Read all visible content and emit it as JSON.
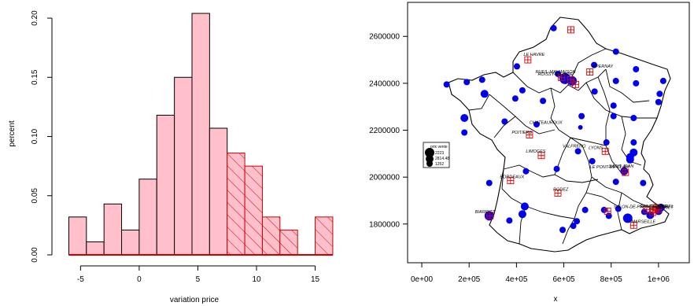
{
  "chart_data": [
    {
      "type": "bar",
      "subtype": "histogram",
      "xlabel": "variation price",
      "ylabel": "percent",
      "xlim": [
        -6.5,
        15.5
      ],
      "ylim": [
        0,
        0.21
      ],
      "xticks": [
        "-5",
        "0",
        "5",
        "10",
        "15"
      ],
      "yticks": [
        "0.00",
        "0.05",
        "0.10",
        "0.15",
        "0.20"
      ],
      "colors": {
        "fill": "#ffc0cb",
        "highlight": "#cc0000",
        "outline": "#000000"
      },
      "bins": [
        {
          "x0": -6,
          "x1": -4.5,
          "value": 0.032,
          "highlight": false
        },
        {
          "x0": -4.5,
          "x1": -3,
          "value": 0.011,
          "highlight": false
        },
        {
          "x0": -3,
          "x1": -1.5,
          "value": 0.043,
          "highlight": false
        },
        {
          "x0": -1.5,
          "x1": 0,
          "value": 0.021,
          "highlight": false
        },
        {
          "x0": 0,
          "x1": 1.5,
          "value": 0.064,
          "highlight": false
        },
        {
          "x0": 1.5,
          "x1": 3,
          "value": 0.118,
          "highlight": false
        },
        {
          "x0": 3,
          "x1": 4.5,
          "value": 0.15,
          "highlight": false
        },
        {
          "x0": 4.5,
          "x1": 6,
          "value": 0.204,
          "highlight": false
        },
        {
          "x0": 6,
          "x1": 7.5,
          "value": 0.107,
          "highlight": false
        },
        {
          "x0": 7.5,
          "x1": 9,
          "value": 0.086,
          "highlight": true
        },
        {
          "x0": 9,
          "x1": 10.5,
          "value": 0.075,
          "highlight": true
        },
        {
          "x0": 10.5,
          "x1": 12,
          "value": 0.032,
          "highlight": true
        },
        {
          "x0": 12,
          "x1": 13.5,
          "value": 0.021,
          "highlight": true
        },
        {
          "x0": 13.5,
          "x1": 15,
          "value": 0.0,
          "highlight": true
        },
        {
          "x0": 15,
          "x1": 16.5,
          "value": 0.032,
          "highlight": true
        }
      ]
    },
    {
      "type": "scatter",
      "subtype": "map",
      "xlabel": "x",
      "ylabel": "",
      "xlim": [
        -60000,
        1130000
      ],
      "ylim": [
        1635000,
        2745000
      ],
      "xticks": [
        "0e+00",
        "2e+05",
        "4e+05",
        "6e+05",
        "8e+05",
        "1e+06"
      ],
      "yticks": [
        "1800000",
        "2000000",
        "2200000",
        "2400000",
        "2600000"
      ],
      "colors": {
        "points": "#0000ee",
        "highlight": "#dd0000",
        "legend_symbol": "#000000"
      },
      "legend": {
        "title": "prix vente",
        "entries": [
          "2223",
          "2814.48",
          "1252"
        ]
      },
      "points": [
        {
          "x": 557000,
          "y": 2635000,
          "r": 4
        },
        {
          "x": 820000,
          "y": 2535000,
          "r": 4
        },
        {
          "x": 402000,
          "y": 2472000,
          "r": 4
        },
        {
          "x": 728000,
          "y": 2478000,
          "r": 4
        },
        {
          "x": 905000,
          "y": 2460000,
          "r": 4
        },
        {
          "x": 575000,
          "y": 2440000,
          "r": 4
        },
        {
          "x": 605000,
          "y": 2420000,
          "r": 7
        },
        {
          "x": 635000,
          "y": 2410000,
          "r": 6
        },
        {
          "x": 105000,
          "y": 2395000,
          "r": 4
        },
        {
          "x": 190000,
          "y": 2405000,
          "r": 4
        },
        {
          "x": 255000,
          "y": 2415000,
          "r": 4
        },
        {
          "x": 820000,
          "y": 2410000,
          "r": 4
        },
        {
          "x": 905000,
          "y": 2400000,
          "r": 4
        },
        {
          "x": 1020000,
          "y": 2410000,
          "r": 4
        },
        {
          "x": 730000,
          "y": 2365000,
          "r": 4
        },
        {
          "x": 265000,
          "y": 2355000,
          "r": 5
        },
        {
          "x": 425000,
          "y": 2370000,
          "r": 4
        },
        {
          "x": 1005000,
          "y": 2355000,
          "r": 4
        },
        {
          "x": 512000,
          "y": 2325000,
          "r": 4
        },
        {
          "x": 395000,
          "y": 2335000,
          "r": 4
        },
        {
          "x": 1000000,
          "y": 2320000,
          "r": 4
        },
        {
          "x": 810000,
          "y": 2305000,
          "r": 4
        },
        {
          "x": 180000,
          "y": 2252000,
          "r": 5
        },
        {
          "x": 675000,
          "y": 2260000,
          "r": 4
        },
        {
          "x": 810000,
          "y": 2260000,
          "r": 4
        },
        {
          "x": 895000,
          "y": 2252000,
          "r": 4
        },
        {
          "x": 350000,
          "y": 2237000,
          "r": 4
        },
        {
          "x": 485000,
          "y": 2225000,
          "r": 4
        },
        {
          "x": 670000,
          "y": 2212000,
          "r": 3
        },
        {
          "x": 180000,
          "y": 2190000,
          "r": 4
        },
        {
          "x": 780000,
          "y": 2148000,
          "r": 4
        },
        {
          "x": 895000,
          "y": 2148000,
          "r": 4
        },
        {
          "x": 660000,
          "y": 2110000,
          "r": 4
        },
        {
          "x": 895000,
          "y": 2105000,
          "r": 5
        },
        {
          "x": 720000,
          "y": 2068000,
          "r": 4
        },
        {
          "x": 880000,
          "y": 2085000,
          "r": 5
        },
        {
          "x": 880000,
          "y": 2075000,
          "r": 5
        },
        {
          "x": 570000,
          "y": 2035000,
          "r": 4
        },
        {
          "x": 440000,
          "y": 2025000,
          "r": 4
        },
        {
          "x": 855000,
          "y": 2025000,
          "r": 5
        },
        {
          "x": 285000,
          "y": 1975000,
          "r": 4
        },
        {
          "x": 820000,
          "y": 1980000,
          "r": 4
        },
        {
          "x": 935000,
          "y": 1975000,
          "r": 4
        },
        {
          "x": 435000,
          "y": 1875000,
          "r": 5
        },
        {
          "x": 690000,
          "y": 1860000,
          "r": 4
        },
        {
          "x": 770000,
          "y": 1860000,
          "r": 4
        },
        {
          "x": 830000,
          "y": 1865000,
          "r": 4
        },
        {
          "x": 1010000,
          "y": 1870000,
          "r": 5
        },
        {
          "x": 940000,
          "y": 1852000,
          "r": 4
        },
        {
          "x": 1000000,
          "y": 1855000,
          "r": 5
        },
        {
          "x": 285000,
          "y": 1835000,
          "r": 6
        },
        {
          "x": 425000,
          "y": 1842000,
          "r": 5
        },
        {
          "x": 870000,
          "y": 1825000,
          "r": 6
        },
        {
          "x": 965000,
          "y": 1838000,
          "r": 5
        },
        {
          "x": 370000,
          "y": 1815000,
          "r": 4
        },
        {
          "x": 655000,
          "y": 1812000,
          "r": 4
        },
        {
          "x": 790000,
          "y": 1835000,
          "r": 4
        },
        {
          "x": 595000,
          "y": 1775000,
          "r": 4
        },
        {
          "x": 640000,
          "y": 1792000,
          "r": 4
        }
      ],
      "highlights": [
        {
          "x": 630000,
          "y": 2628000
        },
        {
          "x": 448000,
          "y": 2500000
        },
        {
          "x": 590000,
          "y": 2425000
        },
        {
          "x": 630000,
          "y": 2415000
        },
        {
          "x": 650000,
          "y": 2395000
        },
        {
          "x": 710000,
          "y": 2448000
        },
        {
          "x": 455000,
          "y": 2180000
        },
        {
          "x": 505000,
          "y": 2092000
        },
        {
          "x": 775000,
          "y": 2110000
        },
        {
          "x": 860000,
          "y": 2020000
        },
        {
          "x": 375000,
          "y": 1985000
        },
        {
          "x": 575000,
          "y": 1932000
        },
        {
          "x": 288000,
          "y": 1835000
        },
        {
          "x": 785000,
          "y": 1855000
        },
        {
          "x": 895000,
          "y": 1795000
        },
        {
          "x": 950000,
          "y": 1862000
        },
        {
          "x": 980000,
          "y": 1860000
        },
        {
          "x": 990000,
          "y": 1870000
        },
        {
          "x": 1000000,
          "y": 1862000
        },
        {
          "x": 975000,
          "y": 1850000
        }
      ],
      "cities": [
        {
          "name": "LE HAVRE",
          "x": 430000,
          "y": 2517000
        },
        {
          "name": "EPERNAY",
          "x": 722000,
          "y": 2467000
        },
        {
          "name": "RUEIL-MALMAISON",
          "x": 480000,
          "y": 2443000
        },
        {
          "name": "ROISSY-EN-BRIE",
          "x": 490000,
          "y": 2433000
        },
        {
          "name": "CHATEAUROUX",
          "x": 455000,
          "y": 2227000
        },
        {
          "name": "POITIERS",
          "x": 380000,
          "y": 2185000
        },
        {
          "name": "LIMOGES",
          "x": 440000,
          "y": 2105000
        },
        {
          "name": "VALFRENO",
          "x": 595000,
          "y": 2127000
        },
        {
          "name": "LYONS",
          "x": 705000,
          "y": 2120000
        },
        {
          "name": "LE PONT-DE-CLAIX",
          "x": 710000,
          "y": 2038000
        },
        {
          "name": "SAINT-JEAN",
          "x": 790000,
          "y": 2040000
        },
        {
          "name": "BORDEAUX",
          "x": 330000,
          "y": 1995000
        },
        {
          "name": "RODEZ",
          "x": 555000,
          "y": 1942000
        },
        {
          "name": "BIARRITZ",
          "x": 225000,
          "y": 1847000
        },
        {
          "name": "SALON-DE-PROVENCE",
          "x": 810000,
          "y": 1868000
        },
        {
          "name": "SAINT-RAPHAEL",
          "x": 920000,
          "y": 1870000
        },
        {
          "name": "LE CANNET",
          "x": 960000,
          "y": 1864000
        },
        {
          "name": "NICE",
          "x": 995000,
          "y": 1870000
        },
        {
          "name": "MARSEILLE",
          "x": 885000,
          "y": 1805000
        }
      ]
    }
  ]
}
